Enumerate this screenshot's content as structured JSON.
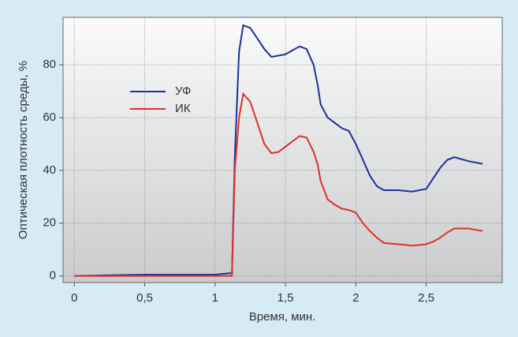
{
  "chart_data": {
    "type": "line",
    "xlabel": "Время, мин.",
    "ylabel": "Оптическая плотность среды, %",
    "x": [
      0,
      0.5,
      1.0,
      1.1,
      1.12,
      1.14,
      1.17,
      1.2,
      1.25,
      1.3,
      1.35,
      1.4,
      1.45,
      1.5,
      1.55,
      1.6,
      1.65,
      1.7,
      1.73,
      1.75,
      1.8,
      1.85,
      1.9,
      1.95,
      2.0,
      2.05,
      2.1,
      2.15,
      2.2,
      2.3,
      2.4,
      2.5,
      2.55,
      2.6,
      2.65,
      2.7,
      2.8,
      2.9
    ],
    "series": [
      {
        "name": "УФ",
        "color": "#1f2f9a",
        "values": [
          0,
          0.5,
          0.5,
          1,
          1,
          45,
          85,
          95,
          94,
          90,
          86,
          83,
          83.5,
          84,
          85.5,
          87,
          86,
          80,
          72,
          65,
          60,
          58,
          56,
          55,
          50,
          44,
          38,
          34,
          32.5,
          32.5,
          32,
          33,
          37,
          41,
          44,
          45,
          43.5,
          42.5
        ]
      },
      {
        "name": "ИК",
        "color": "#e0302a",
        "values": [
          0,
          0,
          0,
          0,
          0,
          40,
          60,
          69,
          66,
          58,
          50,
          46.5,
          47,
          49,
          51,
          53,
          52.5,
          47,
          42,
          36,
          29,
          27,
          25.5,
          25,
          24,
          20,
          17,
          14.5,
          12.5,
          12,
          11.5,
          12,
          13,
          14.5,
          16.5,
          18,
          18,
          17
        ]
      }
    ],
    "xlim": [
      -0.08,
      3.04
    ],
    "ylim": [
      -2.5,
      98
    ],
    "xticks": [
      0,
      {
        "value": 0.5,
        "label": "0,5"
      },
      1,
      {
        "value": 1.5,
        "label": "1,5"
      },
      2,
      {
        "value": 2.5,
        "label": "2,5"
      }
    ],
    "yticks": [
      0,
      20,
      40,
      60,
      80
    ],
    "grid": true
  }
}
